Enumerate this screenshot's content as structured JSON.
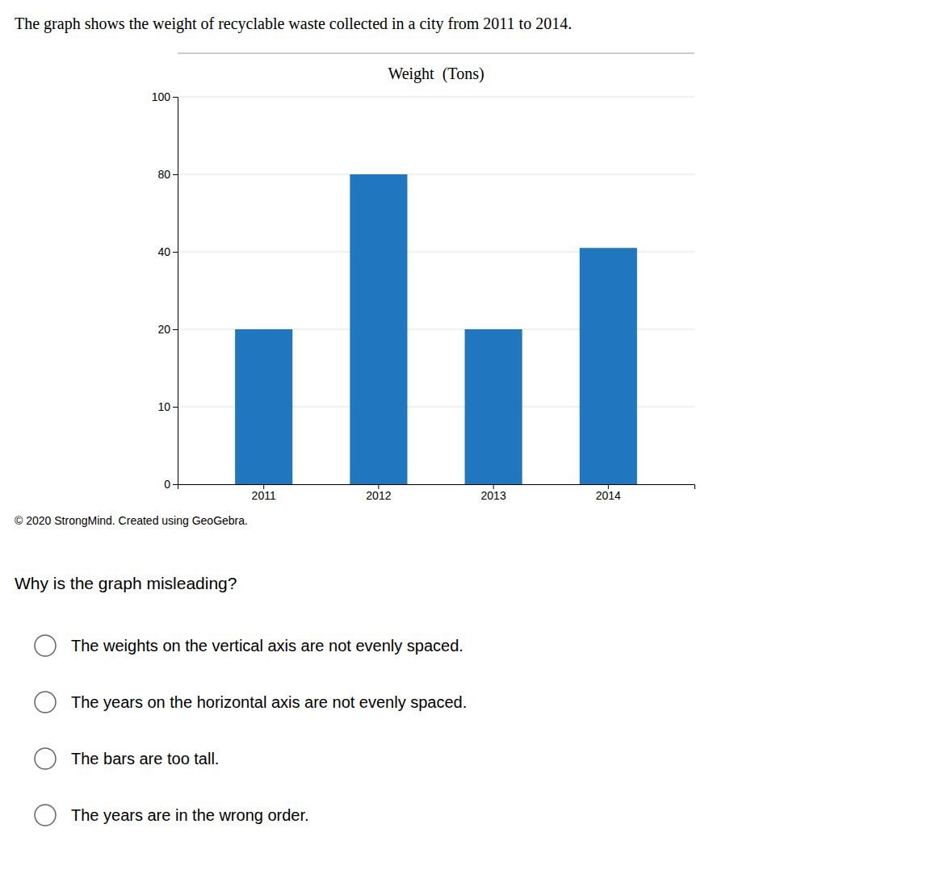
{
  "chart_data": {
    "type": "bar",
    "title": "Weight  (Tons)",
    "categories": [
      "2011",
      "2012",
      "2013",
      "2014"
    ],
    "values": [
      20,
      80,
      20,
      42
    ],
    "color": "#2176C0",
    "ylim": [
      0,
      100
    ],
    "yticks": [
      0,
      10,
      20,
      40,
      80,
      100
    ],
    "grid": true
  },
  "heading": "The graph shows the weight of recyclable waste collected in a city from 2011 to 2014.",
  "copyright": "© 2020 StrongMind. Created using GeoGebra.",
  "question": "Why is the graph misleading?",
  "choices": [
    "The weights on the vertical axis are not evenly spaced.",
    "The years on the horizontal axis are not evenly spaced.",
    "The bars are too tall.",
    "The years are in the wrong order."
  ]
}
